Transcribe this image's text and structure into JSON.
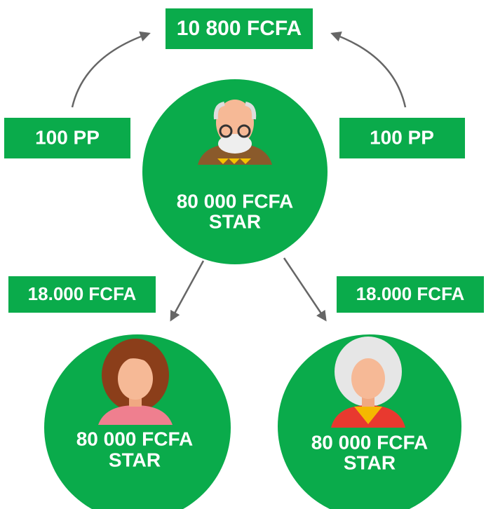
{
  "top": {
    "label": "10 800 FCFA"
  },
  "side_labels": [
    "100 PP",
    "100 PP"
  ],
  "nodes": [
    {
      "amount": "80 000 FCFA",
      "rank": "STAR"
    },
    {
      "amount": "80 000 FCFA",
      "rank": "STAR"
    },
    {
      "amount": "80 000 FCFA",
      "rank": "STAR"
    }
  ],
  "edge_labels": [
    "18.000 FCFA",
    "18.000 FCFA"
  ]
}
